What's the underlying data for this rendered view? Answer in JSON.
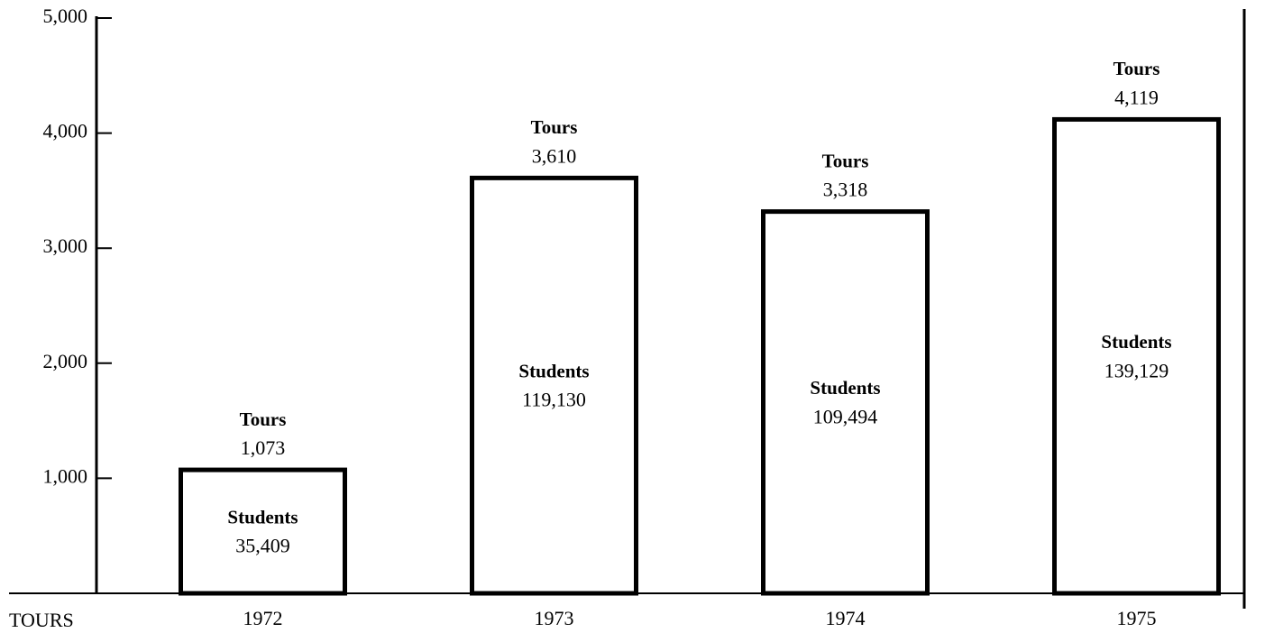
{
  "chart_data": {
    "type": "bar",
    "ylabel": "TOURS",
    "categories": [
      "1972",
      "1973",
      "1974",
      "1975"
    ],
    "series": [
      {
        "name": "Tours",
        "color": "#000000",
        "values": [
          1073,
          3610,
          3318,
          4119
        ],
        "value_labels": [
          "1,073",
          "3,610",
          "3,318",
          "4,119"
        ]
      }
    ],
    "students": {
      "name": "Students",
      "values": [
        35409,
        119130,
        109494,
        139129
      ],
      "value_labels": [
        "35,409",
        "119,130",
        "109,494",
        "139,129"
      ]
    },
    "ylim": [
      0,
      5000
    ],
    "yticks": [
      {
        "value": 1000,
        "label": "1,000"
      },
      {
        "value": 2000,
        "label": "2,000"
      },
      {
        "value": 3000,
        "label": "3,000"
      },
      {
        "value": 4000,
        "label": "4,000"
      },
      {
        "value": 5000,
        "label": "5,000"
      }
    ],
    "grid": false
  }
}
